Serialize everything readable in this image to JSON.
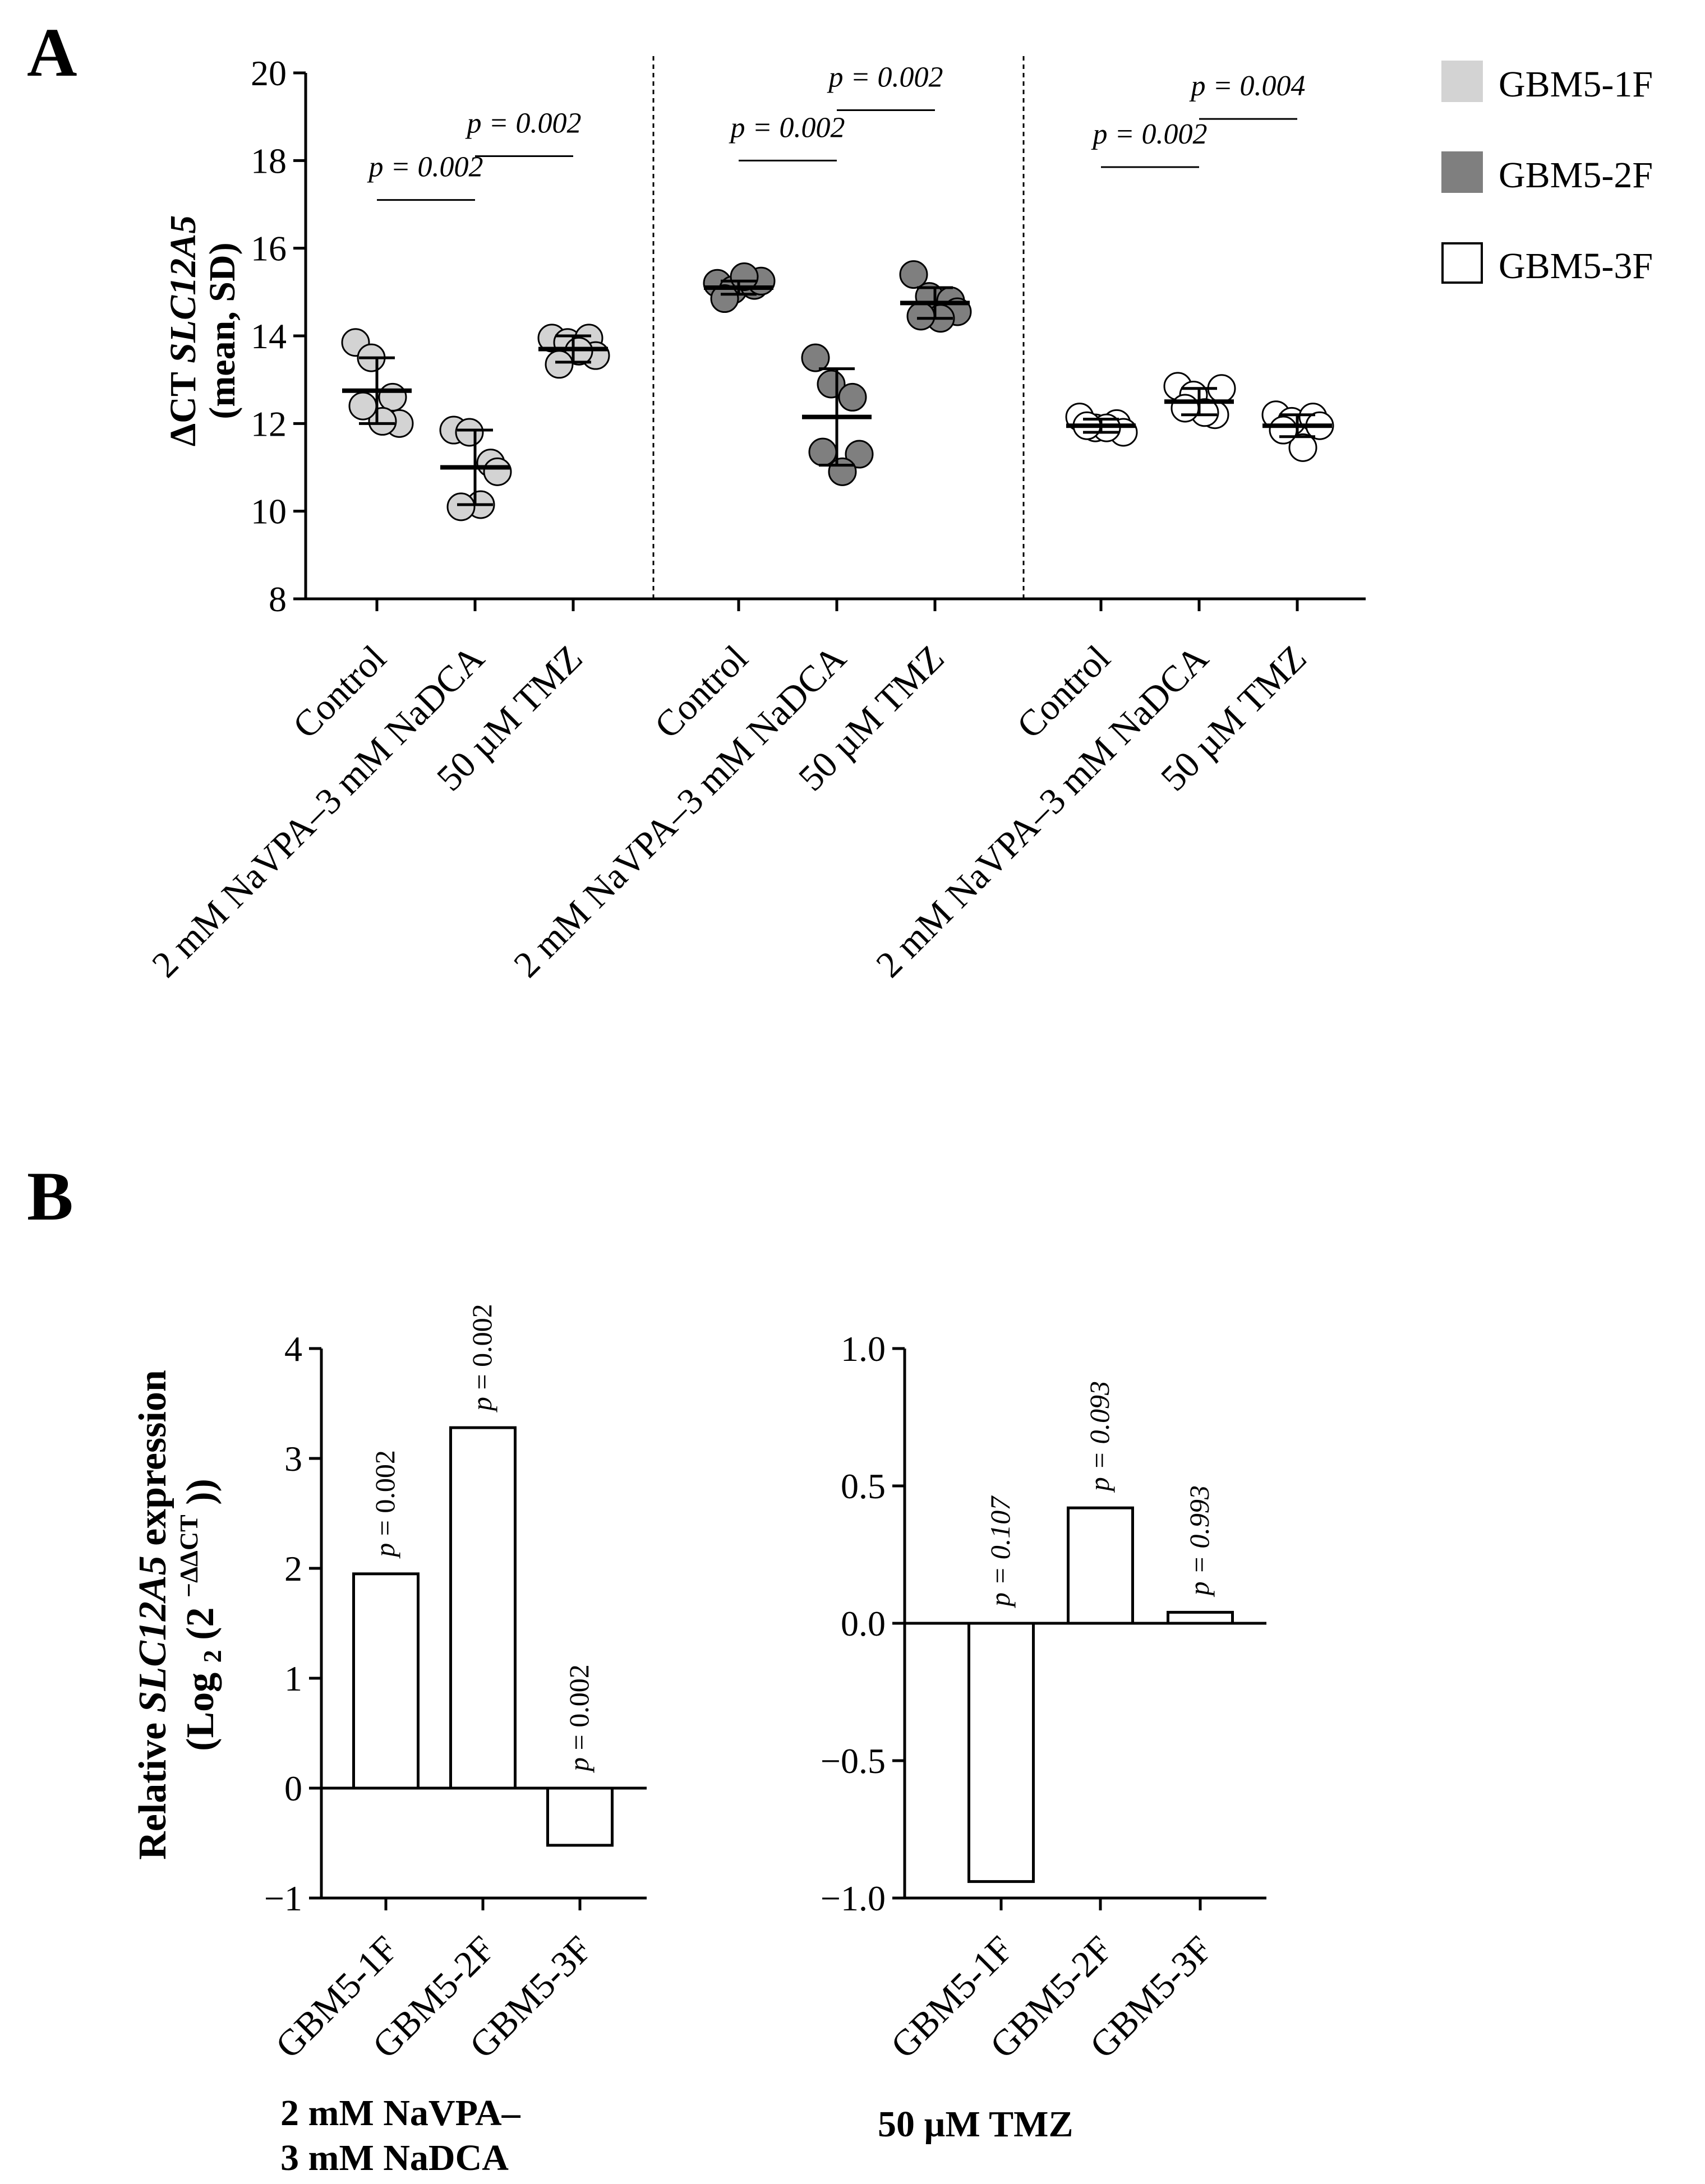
{
  "panelA": {
    "letter": "A",
    "ylabel_line1": "ΔCT",
    "ylabel_gene": "SLC12A5",
    "ylabel_line2": "(mean, SD)",
    "ylim": [
      8,
      20
    ],
    "yticks": [
      "8",
      "10",
      "12",
      "14",
      "16",
      "18",
      "20"
    ],
    "categories": [
      "Control",
      "2 mM NaVPA–3 mM NaDCA",
      "50 µM TMZ"
    ],
    "groups": [
      {
        "name": "GBM5-1F",
        "color": "#d3d3d3",
        "means": [
          12.75,
          11.0,
          13.7
        ],
        "sd": [
          0.75,
          0.85,
          0.3
        ],
        "points": [
          [
            13.85,
            13.5,
            12.6,
            12.0,
            12.05,
            12.4
          ],
          [
            11.85,
            11.8,
            11.1,
            10.9,
            10.15,
            10.1
          ],
          [
            13.95,
            13.85,
            13.95,
            13.55,
            13.65,
            13.35
          ]
        ],
        "pvalues": [
          {
            "from": 0,
            "to": 1,
            "label": "p = 0.002",
            "y": 17.1
          },
          {
            "from": 1,
            "to": 2,
            "label": "p = 0.002",
            "y": 18.1
          }
        ]
      },
      {
        "name": "GBM5-2F",
        "color": "#7f7f7f",
        "means": [
          15.1,
          12.15,
          14.75
        ],
        "sd": [
          0.15,
          1.1,
          0.35
        ],
        "points": [
          [
            15.2,
            15.05,
            15.15,
            15.25,
            15.35,
            14.85
          ],
          [
            13.5,
            12.9,
            12.6,
            11.3,
            10.9,
            11.35
          ],
          [
            15.4,
            14.9,
            14.8,
            14.55,
            14.4,
            14.45
          ]
        ],
        "pvalues": [
          {
            "from": 0,
            "to": 1,
            "label": "p = 0.002",
            "y": 18.0
          },
          {
            "from": 1,
            "to": 2,
            "label": "p = 0.002",
            "y": 19.15
          }
        ]
      },
      {
        "name": "GBM5-3F",
        "color": "#ffffff",
        "means": [
          11.95,
          12.5,
          11.95
        ],
        "sd": [
          0.15,
          0.3,
          0.25
        ],
        "points": [
          [
            12.15,
            11.9,
            12.0,
            11.8,
            11.9,
            11.95
          ],
          [
            12.85,
            12.65,
            12.2,
            12.8,
            12.25,
            12.35
          ],
          [
            12.2,
            12.05,
            12.15,
            11.95,
            11.45,
            11.85
          ]
        ],
        "pvalues": [
          {
            "from": 0,
            "to": 1,
            "label": "p = 0.002",
            "y": 17.85
          },
          {
            "from": 1,
            "to": 2,
            "label": "p = 0.004",
            "y": 18.95
          }
        ]
      }
    ],
    "legend": [
      {
        "label": "GBM5-1F",
        "color": "#d3d3d3"
      },
      {
        "label": "GBM5-2F",
        "color": "#7f7f7f"
      },
      {
        "label": "GBM5-3F",
        "color": "#ffffff"
      }
    ]
  },
  "panelB": {
    "letter": "B",
    "ylabel_line1_a": "Relative",
    "ylabel_gene": "SLC12A5",
    "ylabel_line1_b": "expression",
    "ylabel_line2_a": "(Log",
    "ylabel_line2_sub": "2",
    "ylabel_line2_b": "(2",
    "ylabel_line2_sup": "−ΔΔCT",
    "ylabel_line2_c": "))",
    "chart_data": [
      {
        "type": "bar",
        "title": "2 mM NaVPA–3 mM NaDCA",
        "title_line1": "2 mM  NaVPA–",
        "title_line2": "3 mM NaDCA",
        "categories": [
          "GBM5-1F",
          "GBM5-2F",
          "GBM5-3F"
        ],
        "values": [
          1.95,
          3.28,
          -0.52
        ],
        "pvalues": [
          "p = 0.002",
          "p = 0.002",
          "p = 0.002"
        ],
        "ylim": [
          -1,
          4
        ],
        "yticks": [
          "−1",
          "0",
          "1",
          "2",
          "3",
          "4"
        ],
        "ytick_values": [
          -1,
          0,
          1,
          2,
          3,
          4
        ]
      },
      {
        "type": "bar",
        "title": "50 µM TMZ",
        "title_line1": "50 µM  TMZ",
        "categories": [
          "GBM5-1F",
          "GBM5-2F",
          "GBM5-3F"
        ],
        "values": [
          -0.94,
          0.42,
          0.04
        ],
        "pvalues": [
          "p = 0.107",
          "p = 0.093",
          "p = 0.993"
        ],
        "ylim": [
          -1.0,
          1.0
        ],
        "yticks": [
          "−1.0",
          "−0.5",
          "0.0",
          "0.5",
          "1.0"
        ],
        "ytick_values": [
          -1.0,
          -0.5,
          0.0,
          0.5,
          1.0
        ]
      }
    ]
  }
}
